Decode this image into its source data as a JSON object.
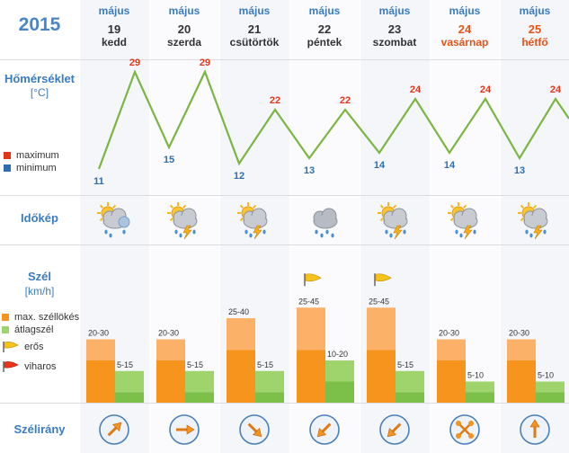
{
  "year": "2015",
  "rows": {
    "temperature": {
      "title": "Hőmérséklet",
      "unit": "[°C]",
      "legend_max": "maximum",
      "legend_min": "minimum"
    },
    "weather": {
      "title": "Időkép"
    },
    "wind": {
      "title": "Szél",
      "unit": "[km/h]",
      "legend_gust": "max. széllökés",
      "legend_avg": "átlagszél",
      "legend_strong": "erős",
      "legend_storm": "viharos"
    },
    "direction": {
      "title": "Szélirány"
    }
  },
  "colors": {
    "accent": "#3b7bbf",
    "max": "#e4341a",
    "min": "#2d6eb1",
    "line": "#7ab641",
    "gust_light": "#fbb268",
    "gust_dark": "#f7941d",
    "avg": "#9fd36b",
    "weekend": "#e4541a"
  },
  "days": [
    {
      "month": "május",
      "day": "19",
      "weekday": "kedd",
      "weekend": false,
      "max": 29,
      "min": 11,
      "gust": "20-30",
      "avg": "5-15",
      "gust_hi": 30,
      "avg_hi": 15,
      "icon": "partly-cloudy-rain-icon",
      "flag": "",
      "dir_deg": 45
    },
    {
      "month": "május",
      "day": "20",
      "weekday": "szerda",
      "weekend": false,
      "max": 29,
      "min": 15,
      "gust": "20-30",
      "avg": "5-15",
      "gust_hi": 30,
      "avg_hi": 15,
      "icon": "thunderstorm-icon",
      "flag": "",
      "dir_deg": 90
    },
    {
      "month": "május",
      "day": "21",
      "weekday": "csütörtök",
      "weekend": false,
      "max": 22,
      "min": 12,
      "gust": "25-40",
      "avg": "5-15",
      "gust_hi": 40,
      "avg_hi": 15,
      "icon": "thunderstorm-icon",
      "flag": "",
      "dir_deg": 135
    },
    {
      "month": "május",
      "day": "22",
      "weekday": "péntek",
      "weekend": false,
      "max": 22,
      "min": 13,
      "gust": "25-45",
      "avg": "10-20",
      "gust_hi": 45,
      "avg_hi": 20,
      "icon": "rain-cloud-icon",
      "flag": "strong-wind-flag-icon",
      "dir_deg": 225
    },
    {
      "month": "május",
      "day": "23",
      "weekday": "szombat",
      "weekend": false,
      "max": 24,
      "min": 14,
      "gust": "25-45",
      "avg": "5-15",
      "gust_hi": 45,
      "avg_hi": 15,
      "icon": "thunderstorm-icon",
      "flag": "strong-wind-flag-icon",
      "dir_deg": 225
    },
    {
      "month": "május",
      "day": "24",
      "weekday": "vasárnap",
      "weekend": true,
      "max": 24,
      "min": 14,
      "gust": "20-30",
      "avg": "5-10",
      "gust_hi": 30,
      "avg_hi": 10,
      "icon": "thunderstorm-icon",
      "flag": "",
      "dir_deg": -1
    },
    {
      "month": "május",
      "day": "25",
      "weekday": "hétfő",
      "weekend": true,
      "max": 24,
      "min": 13,
      "gust": "20-30",
      "avg": "5-10",
      "gust_hi": 30,
      "avg_hi": 10,
      "icon": "thunderstorm-icon",
      "flag": "",
      "dir_deg": 0
    }
  ]
}
